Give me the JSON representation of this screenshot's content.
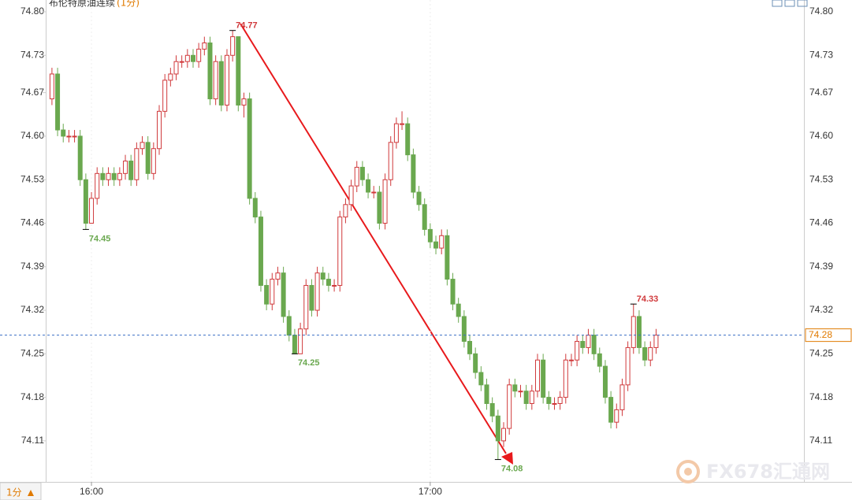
{
  "chart_data": {
    "type": "candlestick",
    "title": "布伦特原油连续",
    "subtitle": "(1分)",
    "period_label": "1分",
    "watermark": "FX678汇通网",
    "up_color": "#d0393b",
    "down_color": "#6aa84f",
    "last_color": "#3a6fc4",
    "xlim": [
      -9.2,
      141.7
    ],
    "xticks": [
      {
        "value": 7,
        "label": "16:00"
      },
      {
        "value": 67,
        "label": "17:00"
      }
    ],
    "ylim": [
      74.044,
      74.819
    ],
    "yticks": [
      74.11,
      74.18,
      74.25,
      74.32,
      74.39,
      74.46,
      74.53,
      74.6,
      74.67,
      74.73,
      74.8
    ],
    "ytick_labels": [
      "74.11",
      "74.18",
      "74.25",
      "74.32",
      "74.39",
      "74.46",
      "74.53",
      "74.60",
      "74.67",
      "74.73",
      "74.80"
    ],
    "open": [
      74.66,
      74.7,
      74.61,
      74.6,
      74.6,
      74.6,
      74.53,
      74.46,
      74.5,
      74.54,
      74.53,
      74.54,
      74.53,
      74.54,
      74.56,
      74.53,
      74.58,
      74.59,
      74.54,
      74.58,
      74.64,
      74.69,
      74.7,
      74.72,
      74.72,
      74.73,
      74.72,
      74.74,
      74.75,
      74.66,
      74.72,
      74.65,
      74.73,
      74.76,
      74.65,
      74.66,
      74.5,
      74.47,
      74.36,
      74.33,
      74.37,
      74.38,
      74.31,
      74.28,
      74.25,
      74.29,
      74.36,
      74.32,
      74.38,
      74.37,
      74.36,
      74.36,
      74.47,
      74.49,
      74.52,
      74.55,
      74.53,
      74.51,
      74.51,
      74.46,
      74.53,
      74.59,
      74.62,
      74.62,
      74.57,
      74.51,
      74.49,
      74.45,
      74.43,
      74.42,
      74.44,
      74.37,
      74.33,
      74.31,
      74.27,
      74.25,
      74.22,
      74.2,
      74.17,
      74.15,
      74.11,
      74.13,
      74.2,
      74.19,
      74.19,
      74.17,
      74.19,
      74.24,
      74.18,
      74.17,
      74.17,
      74.18,
      74.24,
      74.24,
      74.27,
      74.26,
      74.28,
      74.25,
      74.23,
      74.18,
      74.14,
      74.16,
      74.2,
      74.26,
      74.31,
      74.26,
      74.24,
      74.26
    ],
    "high": [
      74.71,
      74.71,
      74.62,
      74.61,
      74.61,
      74.61,
      74.54,
      74.51,
      74.55,
      74.55,
      74.55,
      74.55,
      74.55,
      74.57,
      74.57,
      74.59,
      74.6,
      74.6,
      74.59,
      74.65,
      74.7,
      74.71,
      74.73,
      74.73,
      74.74,
      74.74,
      74.75,
      74.76,
      74.76,
      74.73,
      74.73,
      74.74,
      74.77,
      74.76,
      74.67,
      74.67,
      74.51,
      74.48,
      74.37,
      74.38,
      74.39,
      74.39,
      74.32,
      74.29,
      74.3,
      74.37,
      74.37,
      74.39,
      74.39,
      74.38,
      74.37,
      74.48,
      74.5,
      74.53,
      74.56,
      74.56,
      74.54,
      74.52,
      74.52,
      74.54,
      74.6,
      74.63,
      74.64,
      74.63,
      74.58,
      74.52,
      74.5,
      74.46,
      74.44,
      74.45,
      74.45,
      74.38,
      74.34,
      74.32,
      74.28,
      74.26,
      74.23,
      74.21,
      74.18,
      74.16,
      74.14,
      74.21,
      74.21,
      74.2,
      74.2,
      74.2,
      74.25,
      74.25,
      74.19,
      74.18,
      74.19,
      74.25,
      74.25,
      74.28,
      74.28,
      74.29,
      74.29,
      74.26,
      74.24,
      74.19,
      74.17,
      74.21,
      74.27,
      74.33,
      74.32,
      74.27,
      74.27,
      74.29
    ],
    "low": [
      74.65,
      74.6,
      74.59,
      74.59,
      74.59,
      74.52,
      74.45,
      74.46,
      74.49,
      74.52,
      74.52,
      74.52,
      74.52,
      74.53,
      74.52,
      74.52,
      74.57,
      74.53,
      74.53,
      74.57,
      74.63,
      74.68,
      74.69,
      74.71,
      74.71,
      74.71,
      74.71,
      74.73,
      74.65,
      74.65,
      74.64,
      74.64,
      74.72,
      74.64,
      74.63,
      74.49,
      74.46,
      74.35,
      74.32,
      74.32,
      74.36,
      74.3,
      74.27,
      74.25,
      74.25,
      74.28,
      74.31,
      74.31,
      74.36,
      74.35,
      74.35,
      74.35,
      74.46,
      74.48,
      74.51,
      74.52,
      74.5,
      74.5,
      74.45,
      74.45,
      74.52,
      74.58,
      74.61,
      74.56,
      74.5,
      74.48,
      74.44,
      74.42,
      74.41,
      74.41,
      74.36,
      74.32,
      74.3,
      74.26,
      74.24,
      74.21,
      74.19,
      74.16,
      74.14,
      74.08,
      74.1,
      74.12,
      74.18,
      74.18,
      74.16,
      74.16,
      74.18,
      74.17,
      74.16,
      74.16,
      74.16,
      74.17,
      74.23,
      74.23,
      74.25,
      74.25,
      74.24,
      74.22,
      74.17,
      74.13,
      74.13,
      74.15,
      74.19,
      74.25,
      74.25,
      74.23,
      74.23,
      74.25
    ],
    "close": [
      74.7,
      74.61,
      74.6,
      74.6,
      74.6,
      74.53,
      74.46,
      74.5,
      74.54,
      74.53,
      74.54,
      74.53,
      74.54,
      74.56,
      74.53,
      74.58,
      74.59,
      74.54,
      74.58,
      74.64,
      74.69,
      74.7,
      74.72,
      74.72,
      74.73,
      74.72,
      74.74,
      74.75,
      74.66,
      74.72,
      74.65,
      74.73,
      74.76,
      74.65,
      74.66,
      74.5,
      74.47,
      74.36,
      74.33,
      74.37,
      74.38,
      74.31,
      74.28,
      74.25,
      74.29,
      74.36,
      74.32,
      74.38,
      74.37,
      74.36,
      74.36,
      74.47,
      74.49,
      74.52,
      74.55,
      74.53,
      74.51,
      74.51,
      74.46,
      74.53,
      74.59,
      74.62,
      74.62,
      74.57,
      74.51,
      74.49,
      74.45,
      74.43,
      74.42,
      74.44,
      74.37,
      74.33,
      74.31,
      74.27,
      74.25,
      74.22,
      74.2,
      74.17,
      74.15,
      74.11,
      74.13,
      74.2,
      74.19,
      74.19,
      74.17,
      74.19,
      74.24,
      74.18,
      74.17,
      74.17,
      74.18,
      74.24,
      74.24,
      74.27,
      74.26,
      74.28,
      74.25,
      74.23,
      74.18,
      74.14,
      74.16,
      74.2,
      74.26,
      74.31,
      74.26,
      74.24,
      74.26,
      74.28
    ]
  }
}
